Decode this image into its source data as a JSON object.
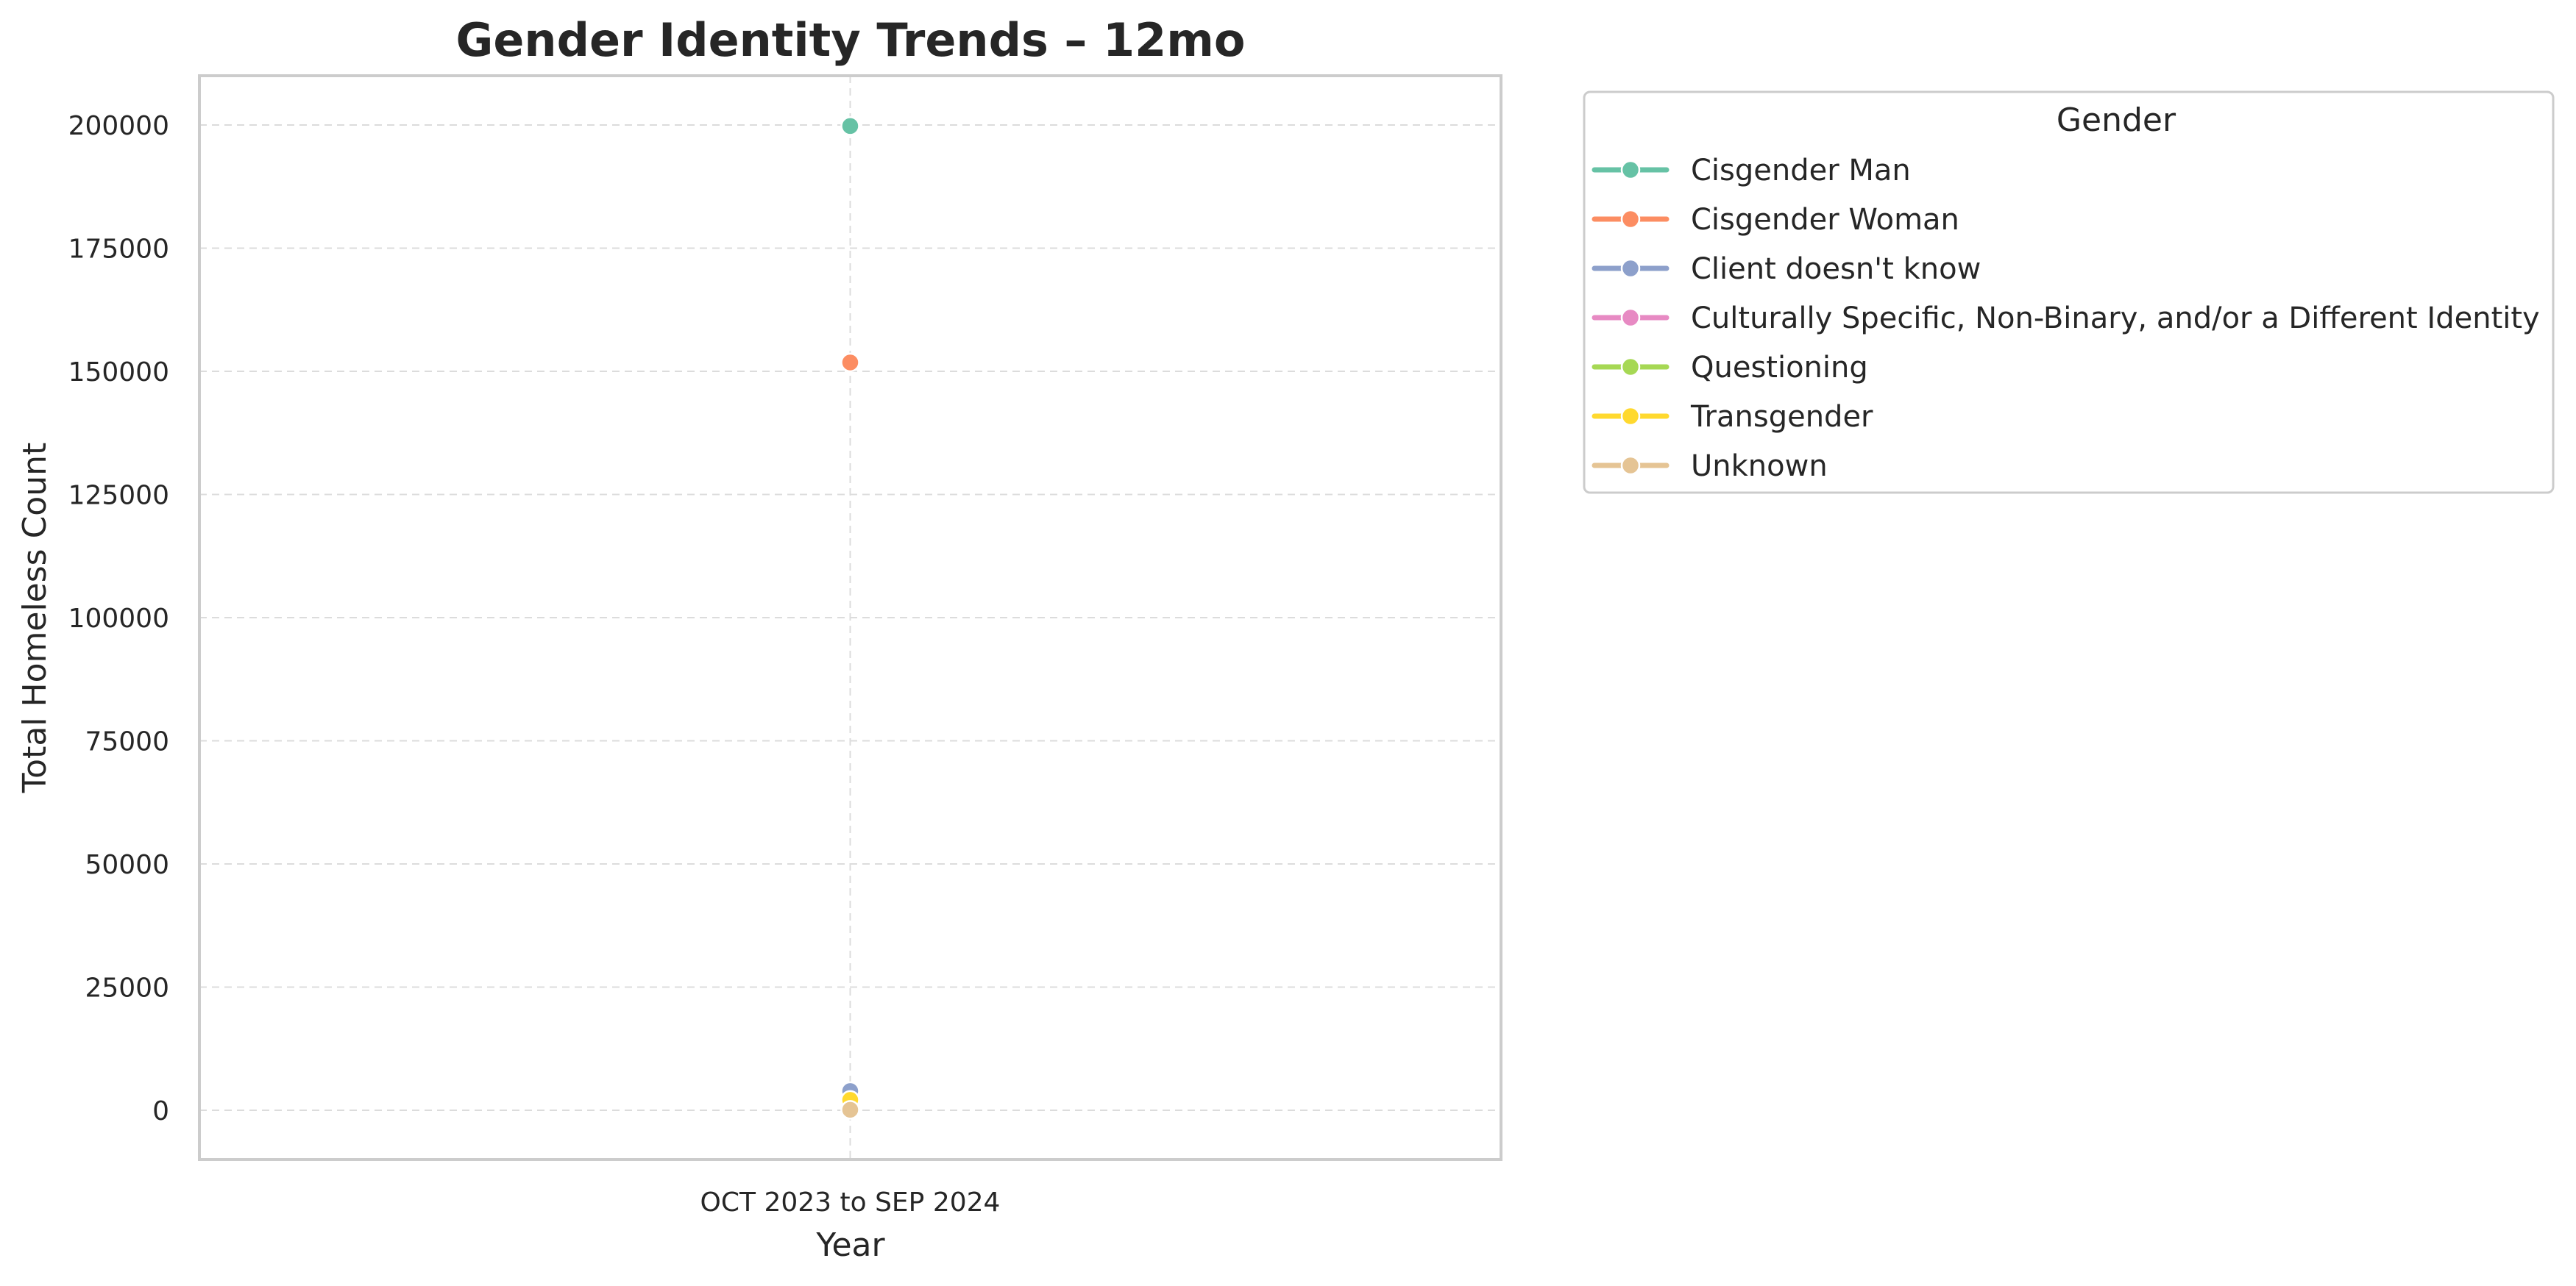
{
  "chart_data": {
    "type": "line",
    "title": "Gender Identity Trends – 12mo",
    "xlabel": "Year",
    "ylabel": "Total Homeless Count",
    "categories": [
      "OCT 2023 to SEP 2024"
    ],
    "ylim": [
      -10000,
      210000
    ],
    "yticks": [
      0,
      25000,
      50000,
      75000,
      100000,
      125000,
      150000,
      175000,
      200000
    ],
    "grid": true,
    "legend": {
      "title": "Gender",
      "placement": "outside-top-right"
    },
    "series": [
      {
        "name": "Cisgender Man",
        "color": "#66c2a5",
        "values": [
          199800
        ]
      },
      {
        "name": "Cisgender Woman",
        "color": "#fc8d62",
        "values": [
          151800
        ]
      },
      {
        "name": "Client doesn't know",
        "color": "#8da0cb",
        "values": [
          3900
        ]
      },
      {
        "name": "Culturally Specific, Non-Binary, and/or a Different Identity",
        "color": "#e78ac3",
        "values": [
          600
        ]
      },
      {
        "name": "Questioning",
        "color": "#a6d854",
        "values": [
          400
        ]
      },
      {
        "name": "Transgender",
        "color": "#ffd92f",
        "values": [
          2100
        ]
      },
      {
        "name": "Unknown",
        "color": "#e5c494",
        "values": [
          100
        ]
      }
    ]
  }
}
